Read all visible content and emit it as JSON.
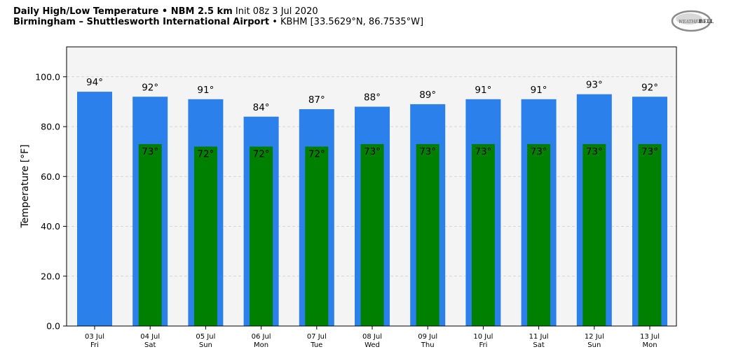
{
  "header": {
    "line1_bold": "Daily High/Low Temperature • NBM 2.5 km",
    "line1_normal": "Init 08z 3 Jul 2020",
    "line2_bold": "Birmingham – Shuttlesworth International Airport",
    "line2_normal": "• KBHM [33.5629°N, 86.7535°W]"
  },
  "logo": {
    "text_left": "WEATHER",
    "text_right": "BELL",
    "icon": "weatherbell-logo"
  },
  "colors": {
    "high": "#2c80ec",
    "low": "#008000",
    "plot_bg": "#f4f4f4",
    "grid": "#cccccc"
  },
  "chart_data": {
    "type": "bar",
    "ylabel": "Temperature [°F]",
    "ylim": [
      0,
      112
    ],
    "yticks": [
      "0.0",
      "20.0",
      "40.0",
      "60.0",
      "80.0",
      "100.0"
    ],
    "ytick_values": [
      0,
      20,
      40,
      60,
      80,
      100
    ],
    "grid": true,
    "categories": [
      "03 Jul",
      "04 Jul",
      "05 Jul",
      "06 Jul",
      "07 Jul",
      "08 Jul",
      "09 Jul",
      "10 Jul",
      "11 Jul",
      "12 Jul",
      "13 Jul"
    ],
    "days": [
      "Fri",
      "Sat",
      "Sun",
      "Mon",
      "Tue",
      "Wed",
      "Thu",
      "Fri",
      "Sat",
      "Sun",
      "Mon"
    ],
    "series": [
      {
        "name": "High",
        "values": [
          94,
          92,
          91,
          84,
          87,
          88,
          89,
          91,
          91,
          93,
          92
        ],
        "labels": [
          "94°",
          "92°",
          "91°",
          "84°",
          "87°",
          "88°",
          "89°",
          "91°",
          "91°",
          "93°",
          "92°"
        ]
      },
      {
        "name": "Low",
        "values": [
          null,
          73,
          72,
          72,
          72,
          73,
          73,
          73,
          73,
          73,
          73
        ],
        "labels": [
          "",
          "73°",
          "72°",
          "72°",
          "72°",
          "73°",
          "73°",
          "73°",
          "73°",
          "73°",
          "73°"
        ]
      }
    ]
  }
}
